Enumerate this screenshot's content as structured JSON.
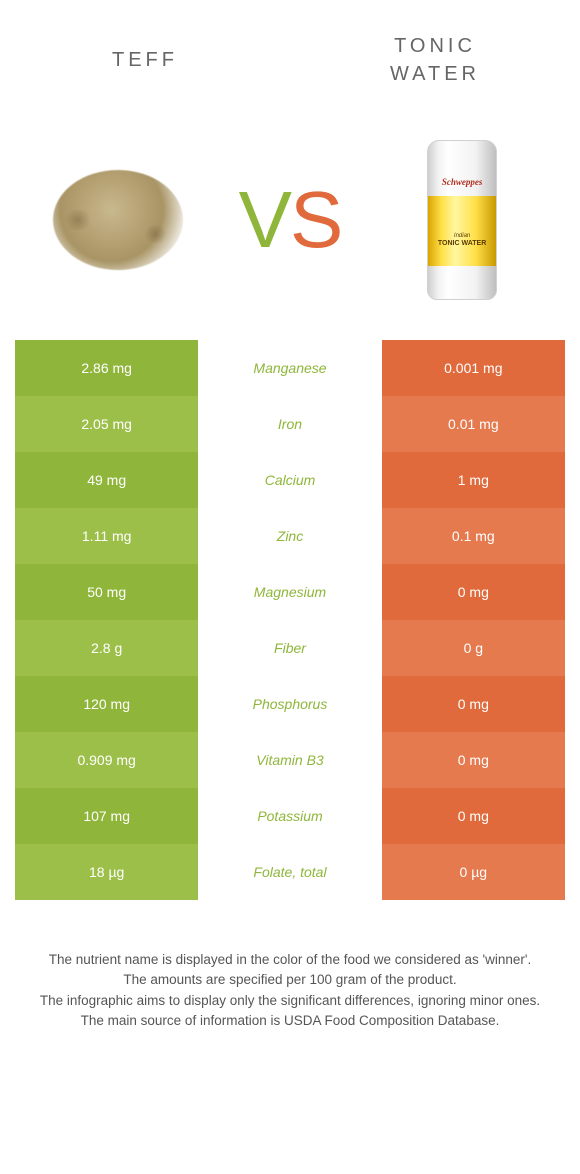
{
  "colors": {
    "left": "#8fb63a",
    "left_alt": "#9cbf4a",
    "right": "#e06a3b",
    "right_alt": "#e57a4f",
    "mid_text_left": "#8fb63a",
    "mid_text_right": "#e06a3b"
  },
  "header": {
    "left": "Teff",
    "right_line1": "Tonic",
    "right_line2": "water"
  },
  "vs": {
    "v": "V",
    "s": "S"
  },
  "can": {
    "brand": "Schweppes",
    "sub": "Indian",
    "name": "TONIC WATER"
  },
  "rows": [
    {
      "left": "2.86 mg",
      "mid": "Manganese",
      "right": "0.001 mg",
      "winner": "left"
    },
    {
      "left": "2.05 mg",
      "mid": "Iron",
      "right": "0.01 mg",
      "winner": "left"
    },
    {
      "left": "49 mg",
      "mid": "Calcium",
      "right": "1 mg",
      "winner": "left"
    },
    {
      "left": "1.11 mg",
      "mid": "Zinc",
      "right": "0.1 mg",
      "winner": "left"
    },
    {
      "left": "50 mg",
      "mid": "Magnesium",
      "right": "0 mg",
      "winner": "left"
    },
    {
      "left": "2.8 g",
      "mid": "Fiber",
      "right": "0 g",
      "winner": "left"
    },
    {
      "left": "120 mg",
      "mid": "Phosphorus",
      "right": "0 mg",
      "winner": "left"
    },
    {
      "left": "0.909 mg",
      "mid": "Vitamin B3",
      "right": "0 mg",
      "winner": "left"
    },
    {
      "left": "107 mg",
      "mid": "Potassium",
      "right": "0 mg",
      "winner": "left"
    },
    {
      "left": "18 µg",
      "mid": "Folate, total",
      "right": "0 µg",
      "winner": "left"
    }
  ],
  "footer": {
    "l1": "The nutrient name is displayed in the color of the food we considered as 'winner'.",
    "l2": "The amounts are specified per 100 gram of the product.",
    "l3": "The infographic aims to display only the significant differences, ignoring minor ones.",
    "l4": "The main source of information is USDA Food Composition Database."
  }
}
